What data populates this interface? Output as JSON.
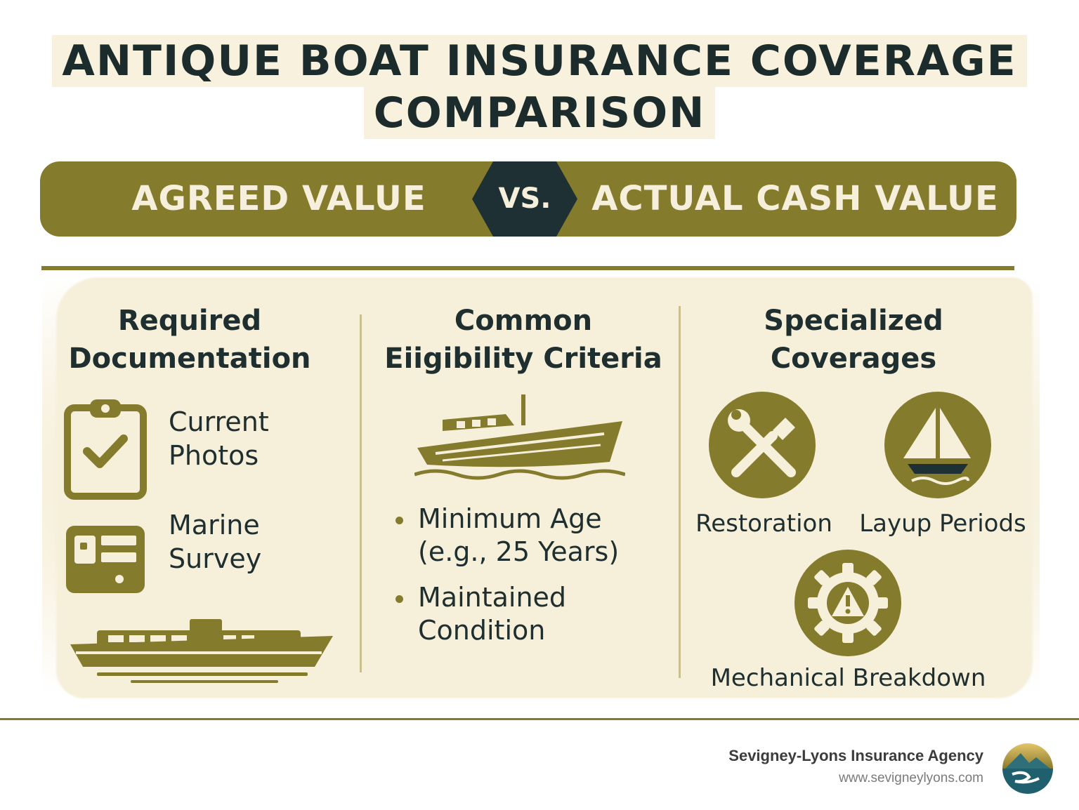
{
  "title": {
    "line1": "ANTIQUE BOAT INSURANCE COVERAGE",
    "line2": "COMPARISON"
  },
  "banner": {
    "left": "AGREED VALUE",
    "vs": "VS.",
    "right": "ACTUAL CASH VALUE"
  },
  "columns": {
    "documentation": {
      "heading_line1": "Required",
      "heading_line2": "Documentation",
      "items": [
        {
          "line1": "Current",
          "line2": "Photos",
          "icon": "clipboard-check-icon"
        },
        {
          "line1": "Marine",
          "line2": "Survey",
          "icon": "survey-card-icon"
        }
      ],
      "illustration": "yacht-icon"
    },
    "eligibility": {
      "heading_line1": "Common",
      "heading_line2": "Eiigibility Criteria",
      "illustration": "fishing-boat-icon",
      "bullets": [
        {
          "line1": "Minimum Age",
          "line2": "(e.g., 25 Years)"
        },
        {
          "line1": "Maintained",
          "line2": "Condition"
        }
      ]
    },
    "coverages": {
      "heading_line1": "Specialized",
      "heading_line2": "Coverages",
      "items": [
        {
          "label": "Restoration",
          "icon": "wrench-brush-icon"
        },
        {
          "label": "Layup Periods",
          "icon": "sailboat-icon"
        },
        {
          "label": "Mechanical Breakdown",
          "icon": "gear-warning-icon"
        }
      ]
    }
  },
  "footer": {
    "agency": "Sevigney-Lyons Insurance Agency",
    "url": "www.sevigneylyons.com",
    "logo": "mountain-wave-logo"
  },
  "colors": {
    "olive": "#857b2c",
    "dark": "#1e3034",
    "cream": "#f6f0db"
  }
}
